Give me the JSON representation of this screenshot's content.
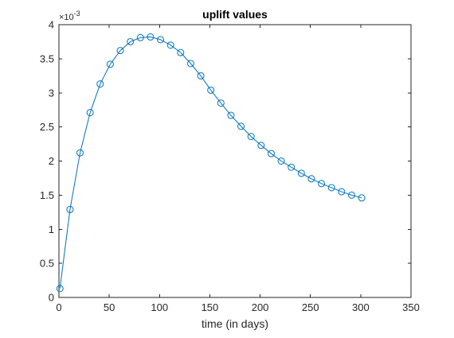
{
  "chart_data": {
    "type": "line",
    "title": "uplift values",
    "xlabel": "time (in days)",
    "ylabel": "",
    "xlim": [
      0,
      350
    ],
    "ylim": [
      0,
      4
    ],
    "x_ticks": [
      0,
      50,
      100,
      150,
      200,
      250,
      300,
      350
    ],
    "x_tick_labels": [
      "0",
      "50",
      "100",
      "150",
      "200",
      "250",
      "300",
      "350"
    ],
    "y_ticks": [
      0,
      0.5,
      1,
      1.5,
      2,
      2.5,
      3,
      3.5,
      4
    ],
    "y_tick_labels": [
      "0",
      "0.5",
      "1",
      "1.5",
      "2",
      "2.5",
      "3",
      "3.5",
      "4"
    ],
    "y_multiplier_label": "×10",
    "y_multiplier_exponent": "-3",
    "grid": false,
    "colors": {
      "series": "#0072BD",
      "axis": "#262626",
      "background": "#ffffff"
    },
    "series": [
      {
        "marker": "circle",
        "x": [
          1,
          11,
          21,
          31,
          41,
          51,
          61,
          71,
          81,
          91,
          101,
          111,
          121,
          131,
          141,
          151,
          161,
          171,
          181,
          191,
          201,
          211,
          221,
          231,
          241,
          251,
          261,
          271,
          281,
          291,
          301
        ],
        "y": [
          0.13,
          1.29,
          2.12,
          2.71,
          3.13,
          3.42,
          3.62,
          3.75,
          3.81,
          3.82,
          3.78,
          3.7,
          3.59,
          3.43,
          3.25,
          3.04,
          2.85,
          2.67,
          2.51,
          2.36,
          2.23,
          2.11,
          2.0,
          1.91,
          1.82,
          1.74,
          1.67,
          1.61,
          1.55,
          1.5,
          1.46
        ]
      }
    ]
  }
}
